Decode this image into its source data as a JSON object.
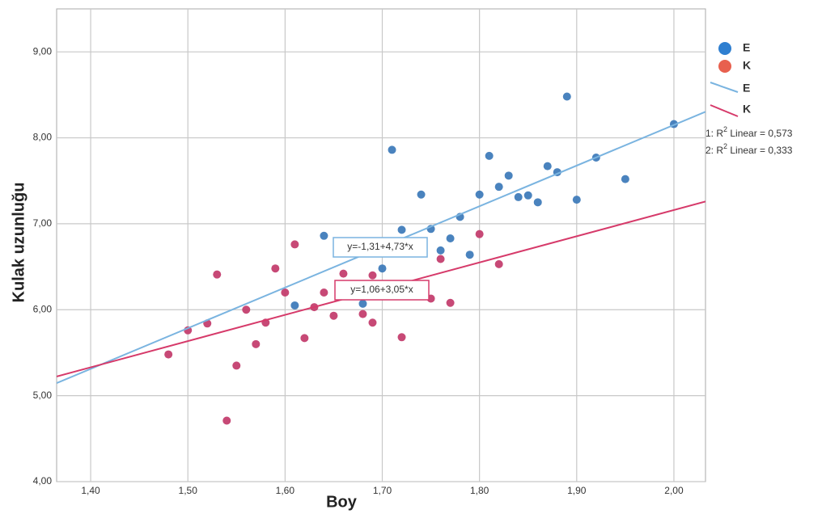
{
  "chart_data": {
    "type": "scatter",
    "x_label": "Boy",
    "y_label": "Kulak uzunluğu",
    "xlim": [
      1.365,
      2.0325
    ],
    "ylim": [
      4,
      9.5
    ],
    "xticks": [
      {
        "value": 1.4,
        "label": "1,40"
      },
      {
        "value": 1.5,
        "label": "1,50"
      },
      {
        "value": 1.6,
        "label": "1,60"
      },
      {
        "value": 1.7,
        "label": "1,70"
      },
      {
        "value": 1.8,
        "label": "1,80"
      },
      {
        "value": 1.9,
        "label": "1,90"
      },
      {
        "value": 2.0,
        "label": "2,00"
      }
    ],
    "yticks": [
      {
        "value": 4,
        "label": "4,00"
      },
      {
        "value": 5,
        "label": "5,00"
      },
      {
        "value": 6,
        "label": "6,00"
      },
      {
        "value": 7,
        "label": "7,00"
      },
      {
        "value": 8,
        "label": "8,00"
      },
      {
        "value": 9,
        "label": "9,00"
      }
    ],
    "grid": true,
    "series": [
      {
        "name": "E",
        "color": "#3b78b8",
        "legend_color": "#2f7fd0",
        "x": [
          1.61,
          1.64,
          1.68,
          1.7,
          1.71,
          1.72,
          1.74,
          1.75,
          1.76,
          1.77,
          1.78,
          1.79,
          1.8,
          1.81,
          1.82,
          1.83,
          1.84,
          1.85,
          1.86,
          1.87,
          1.88,
          1.89,
          1.9,
          1.92,
          1.95,
          2.0
        ],
        "y": [
          6.05,
          6.86,
          6.07,
          6.48,
          7.86,
          6.93,
          7.34,
          6.94,
          6.69,
          6.83,
          7.08,
          6.64,
          7.34,
          7.79,
          7.43,
          7.56,
          7.31,
          7.33,
          7.25,
          7.67,
          7.6,
          8.48,
          7.28,
          7.77,
          7.52,
          8.16
        ]
      },
      {
        "name": "K",
        "color": "#c23a6a",
        "legend_color": "#e8604e",
        "x": [
          1.48,
          1.5,
          1.52,
          1.53,
          1.54,
          1.55,
          1.56,
          1.57,
          1.58,
          1.59,
          1.6,
          1.61,
          1.62,
          1.63,
          1.64,
          1.65,
          1.66,
          1.68,
          1.69,
          1.69,
          1.72,
          1.75,
          1.76,
          1.77,
          1.8,
          1.82
        ],
        "y": [
          5.48,
          5.76,
          5.84,
          6.41,
          4.71,
          5.35,
          6.0,
          5.6,
          5.85,
          6.48,
          6.2,
          6.76,
          5.67,
          6.03,
          6.2,
          5.93,
          6.42,
          5.95,
          5.85,
          6.4,
          5.68,
          6.13,
          6.59,
          6.08,
          6.88,
          6.53
        ]
      }
    ],
    "fits": [
      {
        "name": "E",
        "color": "#7ab4e0",
        "intercept": -1.31,
        "slope": 4.73,
        "label": "y=-1,31+4,73*x",
        "r2_prefix": "1: R",
        "r2_sup": "2",
        "r2_text": " Linear = 0,573"
      },
      {
        "name": "K",
        "color": "#d63a6a",
        "intercept": 1.06,
        "slope": 3.05,
        "label": "y=1,06+3,05*x",
        "r2_prefix": "2: R",
        "r2_sup": "2",
        "r2_text": " Linear = 0,333"
      }
    ]
  }
}
